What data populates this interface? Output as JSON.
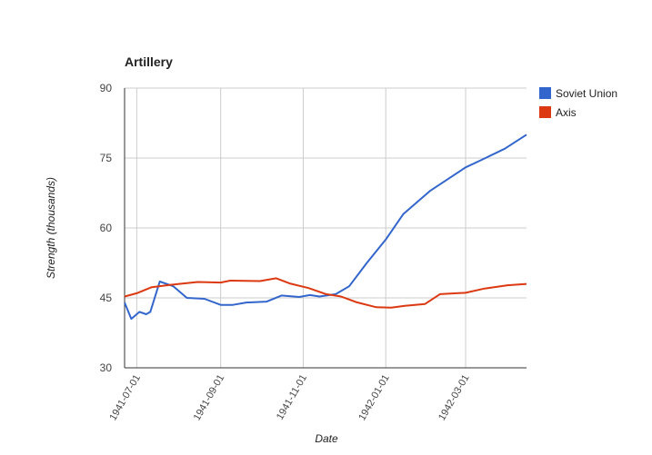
{
  "chart_data": {
    "type": "line",
    "title": "Artillery",
    "x_label": "Date",
    "y_label": "Strength (thousands)",
    "xlim": [
      "1941-06-22",
      "1942-04-15"
    ],
    "xticks": [
      "1941-07-01",
      "1941-09-01",
      "1941-11-01",
      "1942-01-01",
      "1942-03-01"
    ],
    "ylim": [
      30,
      90
    ],
    "yticks": [
      30,
      45,
      60,
      75,
      90
    ],
    "grid": true,
    "legend": "right",
    "series": [
      {
        "name": "Soviet Union",
        "color": "#3366cc",
        "x": [
          "1941-06-22",
          "1941-06-27",
          "1941-07-03",
          "1941-07-08",
          "1941-07-11",
          "1941-07-18",
          "1941-07-28",
          "1941-08-07",
          "1941-08-20",
          "1941-09-01",
          "1941-09-10",
          "1941-09-20",
          "1941-10-05",
          "1941-10-16",
          "1941-10-29",
          "1941-11-06",
          "1941-11-13",
          "1941-11-25",
          "1941-12-05",
          "1941-12-18",
          "1942-01-01",
          "1942-01-14",
          "1942-02-03",
          "1942-03-01",
          "1942-03-12",
          "1942-03-30",
          "1942-04-15"
        ],
        "values": [
          44,
          40.5,
          42,
          41.5,
          42,
          48.5,
          47.5,
          45,
          44.8,
          43.5,
          43.5,
          44,
          44.2,
          45.5,
          45.2,
          45.6,
          45.3,
          45.8,
          47.5,
          52.5,
          57.5,
          63,
          68,
          73,
          74.5,
          77,
          80
        ]
      },
      {
        "name": "Axis",
        "color": "#dc3912",
        "x": [
          "1941-06-22",
          "1941-07-01",
          "1941-07-12",
          "1941-07-26",
          "1941-08-15",
          "1941-09-01",
          "1941-09-08",
          "1941-09-30",
          "1941-10-12",
          "1941-10-22",
          "1941-11-05",
          "1941-11-18",
          "1941-11-29",
          "1941-12-10",
          "1941-12-25",
          "1942-01-05",
          "1942-01-15",
          "1942-01-30",
          "1942-02-10",
          "1942-03-01",
          "1942-03-15",
          "1942-04-01",
          "1942-04-15"
        ],
        "values": [
          45.3,
          46,
          47.3,
          47.8,
          48.4,
          48.3,
          48.7,
          48.6,
          49.2,
          48.1,
          47.1,
          45.8,
          45.3,
          44.1,
          43,
          42.9,
          43.3,
          43.7,
          45.8,
          46.1,
          47,
          47.7,
          48
        ]
      }
    ]
  }
}
